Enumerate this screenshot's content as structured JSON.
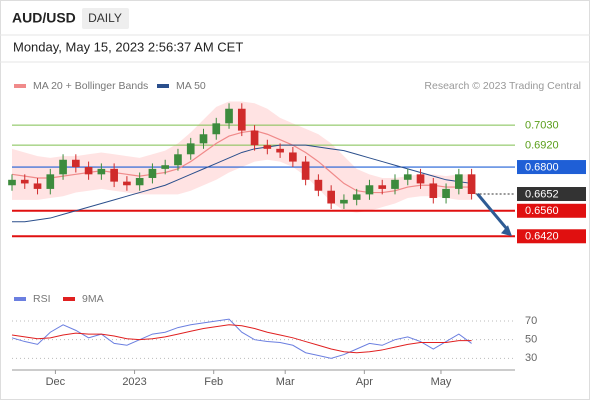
{
  "header": {
    "symbol": "AUD/USD",
    "timeframe": "DAILY",
    "timestamp": "Monday, May 15, 2023 2:56:37 AM CET"
  },
  "chart_data": [
    {
      "type": "candlestick",
      "source": "Research © 2023 Trading Central",
      "x": [
        0,
        5,
        10,
        15,
        20,
        25,
        30,
        35,
        40,
        45,
        50,
        55,
        60,
        65,
        70,
        75,
        80,
        85,
        90,
        95,
        100,
        105,
        110,
        115,
        120,
        125,
        130,
        135,
        140,
        145,
        150,
        155,
        160,
        165,
        170,
        175,
        180
      ],
      "xlim": [
        0,
        197
      ],
      "open": [
        0.67,
        0.673,
        0.671,
        0.668,
        0.676,
        0.684,
        0.68,
        0.676,
        0.679,
        0.672,
        0.67,
        0.674,
        0.679,
        0.681,
        0.687,
        0.693,
        0.698,
        0.704,
        0.712,
        0.7,
        0.692,
        0.69,
        0.688,
        0.683,
        0.673,
        0.667,
        0.66,
        0.662,
        0.665,
        0.67,
        0.668,
        0.673,
        0.676,
        0.671,
        0.663,
        0.668,
        0.676
      ],
      "high": [
        0.676,
        0.676,
        0.674,
        0.679,
        0.687,
        0.687,
        0.683,
        0.682,
        0.682,
        0.675,
        0.677,
        0.682,
        0.684,
        0.69,
        0.696,
        0.701,
        0.707,
        0.715,
        0.715,
        0.703,
        0.695,
        0.693,
        0.691,
        0.686,
        0.676,
        0.67,
        0.665,
        0.668,
        0.673,
        0.673,
        0.676,
        0.679,
        0.679,
        0.674,
        0.671,
        0.679,
        0.679
      ],
      "low": [
        0.667,
        0.668,
        0.665,
        0.665,
        0.673,
        0.677,
        0.673,
        0.673,
        0.669,
        0.667,
        0.667,
        0.671,
        0.676,
        0.678,
        0.684,
        0.69,
        0.695,
        0.701,
        0.697,
        0.689,
        0.687,
        0.685,
        0.68,
        0.67,
        0.664,
        0.657,
        0.657,
        0.659,
        0.662,
        0.665,
        0.665,
        0.67,
        0.668,
        0.66,
        0.66,
        0.665,
        0.6622
      ],
      "close": [
        0.673,
        0.671,
        0.668,
        0.676,
        0.684,
        0.68,
        0.676,
        0.679,
        0.672,
        0.67,
        0.674,
        0.679,
        0.681,
        0.687,
        0.693,
        0.698,
        0.704,
        0.712,
        0.7,
        0.692,
        0.69,
        0.688,
        0.683,
        0.673,
        0.667,
        0.66,
        0.662,
        0.665,
        0.67,
        0.668,
        0.673,
        0.676,
        0.671,
        0.663,
        0.668,
        0.676,
        0.6652
      ],
      "up_color": "#3d8b3d",
      "down_color": "#d02b2b",
      "series": [
        {
          "name": "MA 20 + Bollinger Bands",
          "color": "#f08a8a",
          "values": [
            0.676,
            0.675,
            0.674,
            0.674,
            0.675,
            0.676,
            0.677,
            0.678,
            0.677,
            0.676,
            0.675,
            0.676,
            0.677,
            0.679,
            0.683,
            0.688,
            0.693,
            0.697,
            0.699,
            0.7,
            0.698,
            0.695,
            0.692,
            0.688,
            0.683,
            0.677,
            0.671,
            0.667,
            0.666,
            0.666,
            0.667,
            0.669,
            0.67,
            0.67,
            0.669,
            0.669,
            0.669
          ],
          "upper": [
            0.69,
            0.688,
            0.686,
            0.685,
            0.686,
            0.686,
            0.687,
            0.688,
            0.687,
            0.686,
            0.685,
            0.687,
            0.689,
            0.693,
            0.699,
            0.706,
            0.713,
            0.716,
            0.716,
            0.715,
            0.712,
            0.707,
            0.704,
            0.701,
            0.698,
            0.693,
            0.686,
            0.679,
            0.676,
            0.674,
            0.674,
            0.675,
            0.676,
            0.676,
            0.675,
            0.676,
            0.676
          ],
          "lower": [
            0.662,
            0.662,
            0.662,
            0.663,
            0.664,
            0.666,
            0.667,
            0.668,
            0.667,
            0.666,
            0.665,
            0.665,
            0.665,
            0.665,
            0.667,
            0.67,
            0.673,
            0.677,
            0.68,
            0.683,
            0.684,
            0.683,
            0.68,
            0.675,
            0.668,
            0.661,
            0.656,
            0.655,
            0.656,
            0.658,
            0.66,
            0.663,
            0.664,
            0.664,
            0.663,
            0.662,
            0.662
          ]
        },
        {
          "name": "MA 50",
          "color": "#2b4f8c",
          "values": [
            0.65,
            0.65,
            0.651,
            0.652,
            0.654,
            0.656,
            0.658,
            0.66,
            0.662,
            0.664,
            0.666,
            0.668,
            0.67,
            0.673,
            0.676,
            0.679,
            0.682,
            0.685,
            0.688,
            0.69,
            0.691,
            0.692,
            0.692,
            0.692,
            0.691,
            0.69,
            0.689,
            0.687,
            0.685,
            0.683,
            0.681,
            0.679,
            0.677,
            0.675,
            0.673,
            0.672,
            0.671
          ]
        }
      ],
      "ylim": [
        0.618,
        0.7168
      ],
      "levels": [
        {
          "value": 0.703,
          "label": "0.7030",
          "color": "#7fbf4f",
          "box": false,
          "dashed": false
        },
        {
          "value": 0.692,
          "label": "0.6920",
          "color": "#7fbf4f",
          "box": false,
          "dashed": false
        },
        {
          "value": 0.68,
          "label": "0.6800",
          "color": "#1f5fd6",
          "box": true,
          "dashed": false
        },
        {
          "value": 0.6652,
          "label": "0.6652",
          "color": "#333333",
          "box": true,
          "dashed": true
        },
        {
          "value": 0.656,
          "label": "0.6560",
          "color": "#e01010",
          "box": true,
          "dashed": false
        },
        {
          "value": 0.642,
          "label": "0.6420",
          "color": "#e01010",
          "box": true,
          "dashed": false
        }
      ]
    },
    {
      "type": "line",
      "x": [
        0,
        5,
        10,
        15,
        20,
        25,
        30,
        35,
        40,
        45,
        50,
        55,
        60,
        65,
        70,
        75,
        80,
        85,
        90,
        95,
        100,
        105,
        110,
        115,
        120,
        125,
        130,
        135,
        140,
        145,
        150,
        155,
        160,
        165,
        170,
        175,
        180
      ],
      "xlim": [
        0,
        197
      ],
      "xticks": [
        {
          "value": 17,
          "label": "Dec"
        },
        {
          "value": 48,
          "label": "2023"
        },
        {
          "value": 79,
          "label": "Feb"
        },
        {
          "value": 107,
          "label": "Mar"
        },
        {
          "value": 138,
          "label": "Apr"
        },
        {
          "value": 168,
          "label": "May"
        }
      ],
      "series": [
        {
          "name": "RSI",
          "color": "#6b7fe0",
          "values": [
            52,
            48,
            45,
            58,
            66,
            60,
            52,
            56,
            46,
            44,
            50,
            56,
            58,
            63,
            66,
            68,
            70,
            72,
            58,
            50,
            48,
            47,
            44,
            36,
            33,
            30,
            34,
            40,
            46,
            44,
            50,
            53,
            48,
            40,
            48,
            56,
            46
          ]
        },
        {
          "name": "9MA",
          "color": "#e02020",
          "values": [
            55,
            53,
            51,
            52,
            55,
            57,
            56,
            56,
            54,
            51,
            50,
            51,
            53,
            56,
            59,
            62,
            64,
            66,
            65,
            62,
            58,
            55,
            52,
            48,
            44,
            40,
            37,
            36,
            37,
            39,
            42,
            45,
            47,
            47,
            47,
            49,
            49
          ]
        }
      ],
      "ylim": [
        19.6,
        76.5
      ],
      "yticks": [
        30,
        50,
        70
      ]
    }
  ]
}
